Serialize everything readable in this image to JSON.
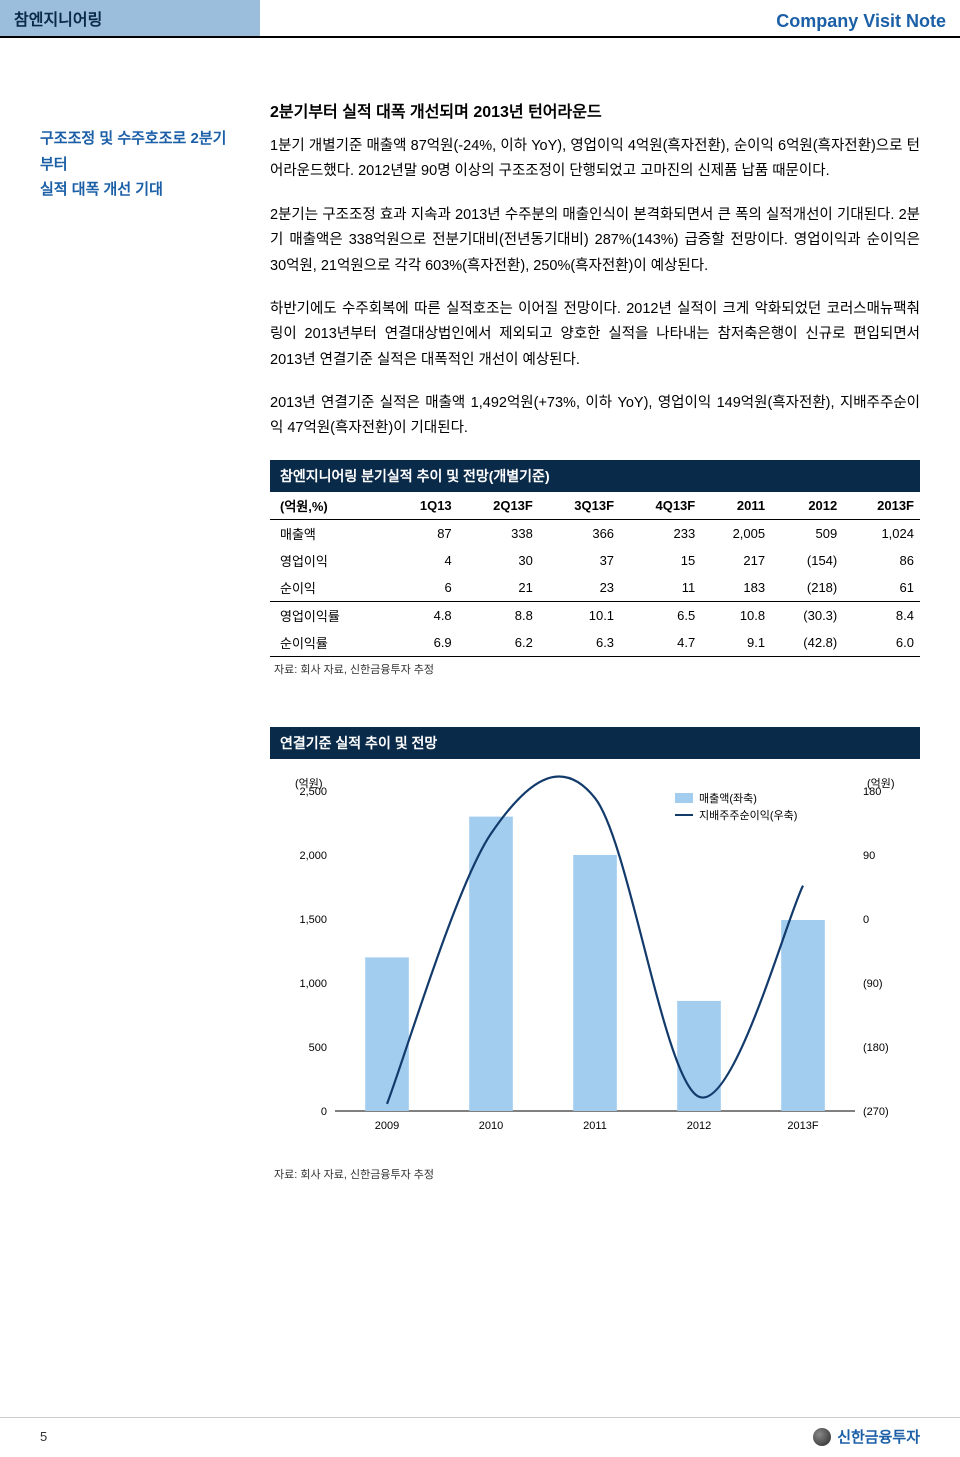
{
  "header": {
    "company_name": "참엔지니어링",
    "note_type": "Company Visit Note"
  },
  "left_panel": {
    "line1": "구조조정 및 수주호조로 2분기부터",
    "line2": "실적 대폭 개선 기대"
  },
  "text": {
    "heading": "2분기부터 실적 대폭 개선되며 2013년 턴어라운드",
    "p1": "1분기 개별기준 매출액 87억원(-24%, 이하 YoY), 영업이익 4억원(흑자전환), 순이익 6억원(흑자전환)으로 턴어라운드했다. 2012년말 90명 이상의 구조조정이 단행되었고 고마진의 신제품 납품 때문이다.",
    "p2": "2분기는 구조조정 효과 지속과 2013년 수주분의 매출인식이 본격화되면서 큰 폭의 실적개선이 기대된다. 2분기 매출액은 338억원으로 전분기대비(전년동기대비) 287%(143%) 급증할 전망이다. 영업이익과 순이익은 30억원, 21억원으로 각각 603%(흑자전환), 250%(흑자전환)이 예상된다.",
    "p3": "하반기에도 수주회복에 따른 실적호조는 이어질 전망이다. 2012년 실적이 크게 악화되었던 코러스매뉴팩춰링이 2013년부터 연결대상법인에서 제외되고 양호한 실적을 나타내는 참저축은행이 신규로 편입되면서 2013년 연결기준 실적은 대폭적인 개선이 예상된다.",
    "p4": "2013년 연결기준 실적은 매출액 1,492억원(+73%, 이하 YoY), 영업이익 149억원(흑자전환), 지배주주순이익 47억원(흑자전환)이 기대된다."
  },
  "table": {
    "title": "참엔지니어링 분기실적 추이 및 전망(개별기준)",
    "unit_label": "(억원,%)",
    "columns": [
      "1Q13",
      "2Q13F",
      "3Q13F",
      "4Q13F",
      "2011",
      "2012",
      "2013F"
    ],
    "rows": [
      {
        "label": "매출액",
        "vals": [
          "87",
          "338",
          "366",
          "233",
          "2,005",
          "509",
          "1,024"
        ]
      },
      {
        "label": "영업이익",
        "vals": [
          "4",
          "30",
          "37",
          "15",
          "217",
          "(154)",
          "86"
        ]
      },
      {
        "label": "순이익",
        "vals": [
          "6",
          "21",
          "23",
          "11",
          "183",
          "(218)",
          "61"
        ]
      },
      {
        "label": "영업이익률",
        "vals": [
          "4.8",
          "8.8",
          "10.1",
          "6.5",
          "10.8",
          "(30.3)",
          "8.4"
        ]
      },
      {
        "label": "순이익률",
        "vals": [
          "6.9",
          "6.2",
          "6.3",
          "4.7",
          "9.1",
          "(42.8)",
          "6.0"
        ]
      }
    ],
    "source": "자료: 회사 자료, 신한금융투자 추정"
  },
  "chart": {
    "title": "연결기준 실적 추이 및 전망",
    "type": "bar_and_line_dual_axis",
    "left_axis_label": "(억원)",
    "right_axis_label": "(억원)",
    "legend_bar": "매출액(좌축)",
    "legend_line": "지배주주순이익(우축)",
    "categories": [
      "2009",
      "2010",
      "2011",
      "2012",
      "2013F"
    ],
    "bar_values": [
      1200,
      2300,
      2000,
      860,
      1492
    ],
    "line_values": [
      -260,
      120,
      170,
      -250,
      47
    ],
    "left_ylim": [
      0,
      2500
    ],
    "left_ytick_step": 500,
    "right_ylim": [
      -270,
      180
    ],
    "right_ytick_step": 90,
    "right_ticks": [
      "180",
      "90",
      "0",
      "(90)",
      "(180)",
      "(270)"
    ],
    "bar_color": "#a3cdef",
    "line_color": "#123a6b",
    "background_color": "#ffffff",
    "grid_color": "#ffffff",
    "bar_width": 0.42,
    "label_fontsize": 11,
    "title_fontsize": 14,
    "source": "자료: 회사 자료, 신한금융투자 추정"
  },
  "footer": {
    "page_num": "5",
    "brand": "신한금융투자"
  }
}
